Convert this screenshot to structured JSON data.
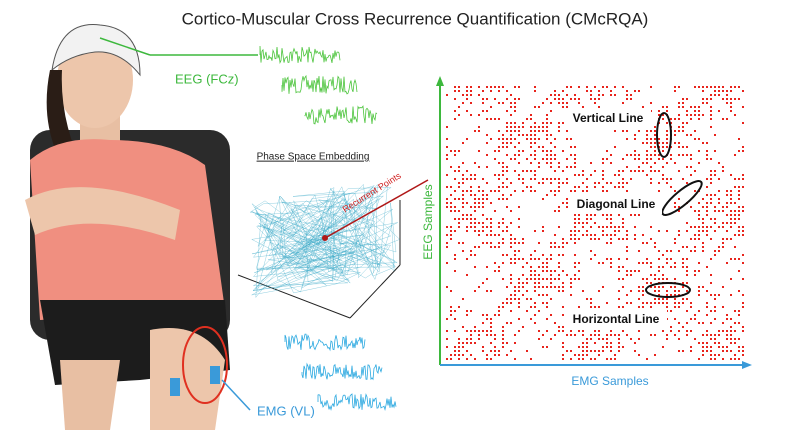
{
  "title": "Cortico-Muscular Cross Recurrence Quantification (CMcRQA)",
  "eeg": {
    "label": "EEG (FCz)"
  },
  "emg": {
    "label": "EMG (VL)"
  },
  "phase_space": {
    "title": "Phase Space Embedding",
    "annotation": "Recurrent Points"
  },
  "recurrence_plot": {
    "y_axis_label": "EEG Samples",
    "x_axis_label": "EMG Samples",
    "annotations": [
      "Vertical Line",
      "Diagonal Line",
      "Horizontal Line"
    ]
  }
}
